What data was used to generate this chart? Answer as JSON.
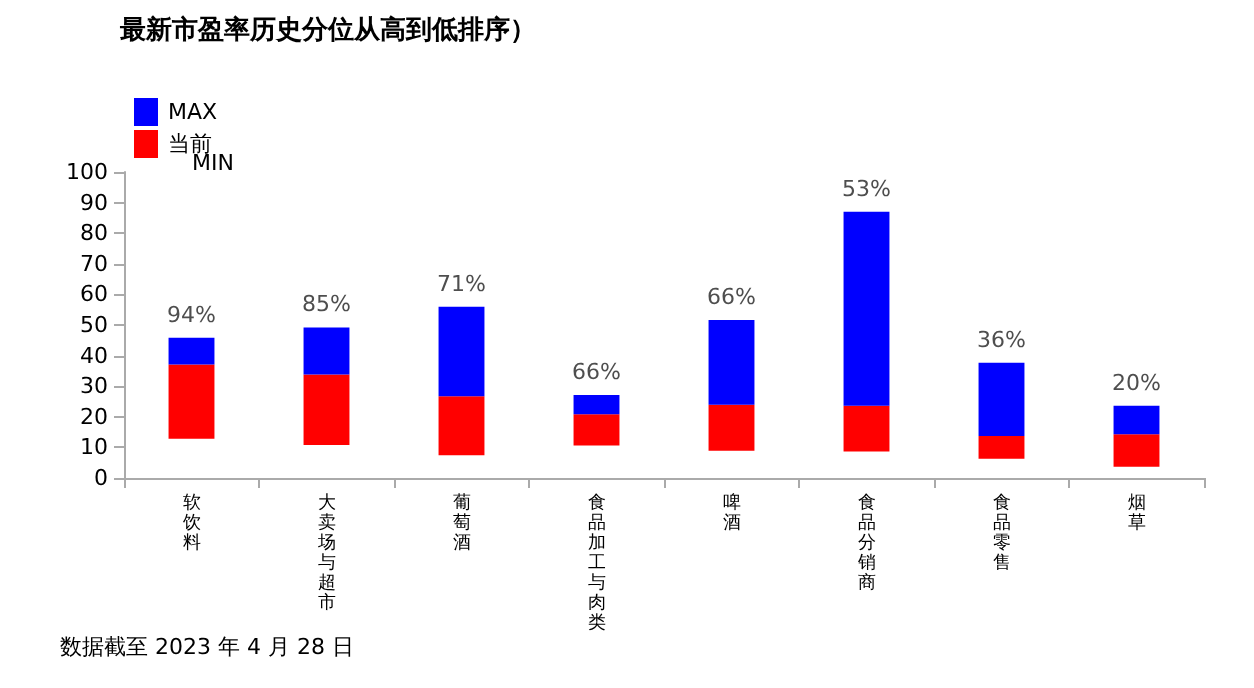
{
  "chart_data": {
    "type": "bar",
    "title": "最新市盈率历史分位从高到低排序）",
    "categories": [
      "软饮料",
      "大卖场与超市",
      "葡萄酒",
      "食品加工与肉类",
      "啤酒",
      "食品分销商",
      "食品零售",
      "烟草"
    ],
    "series": [
      {
        "name": "当前",
        "color": "#ff0000",
        "base": [
          12.8,
          10.8,
          7.4,
          10.6,
          8.9,
          8.7,
          6.3,
          3.7
        ],
        "values": [
          24.3,
          23.0,
          19.3,
          10.2,
          15.0,
          14.9,
          7.4,
          10.6
        ]
      },
      {
        "name": "MAX",
        "color": "#0000ff",
        "base": [
          37.1,
          33.8,
          26.7,
          20.8,
          23.9,
          23.6,
          13.7,
          14.3
        ],
        "values": [
          8.7,
          15.4,
          29.3,
          6.3,
          27.7,
          63.4,
          24.0,
          9.3
        ]
      }
    ],
    "ylim": [
      0,
      100
    ],
    "yticks": [
      0,
      10,
      20,
      30,
      40,
      50,
      60,
      70,
      80,
      90,
      100
    ],
    "grid": false,
    "legend": "top left",
    "annotations": [
      "MIN",
      "数据截至 2023 年 4 月 28 日",
      {
        "text": "94%",
        "x": "软饮料",
        "y": 45.8
      },
      {
        "text": "85%",
        "x": "大卖场与超市",
        "y": 49.2
      },
      {
        "text": "71%",
        "x": "葡萄酒",
        "y": 56.0
      },
      {
        "text": "66%",
        "x": "食品加工与肉类",
        "y": 27.1
      },
      {
        "text": "66%",
        "x": "啤酒",
        "y": 51.6
      },
      {
        "text": "53%",
        "x": "食品分销商",
        "y": 87.0
      },
      {
        "text": "36%",
        "x": "食品零售",
        "y": 37.7
      },
      {
        "text": "20%",
        "x": "烟草",
        "y": 23.6
      }
    ]
  }
}
